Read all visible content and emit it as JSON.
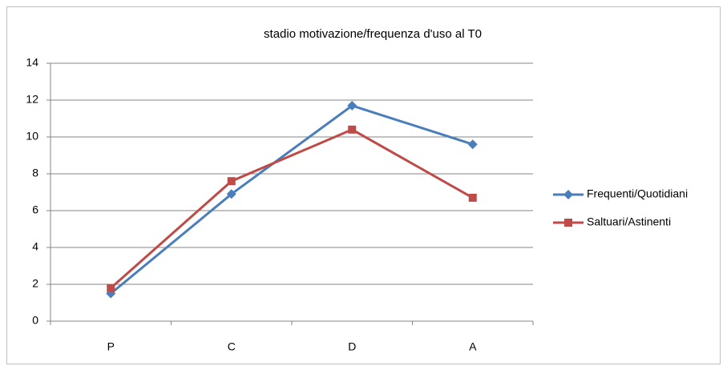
{
  "chart_data": {
    "type": "line",
    "title": "stadio motivazione/frequenza d'uso al T0",
    "categories": [
      "P",
      "C",
      "D",
      "A"
    ],
    "series": [
      {
        "name": "Frequenti/Quotidiani",
        "color": "#4a7ebb",
        "marker": "diamond",
        "values": [
          1.5,
          6.9,
          11.7,
          9.6
        ]
      },
      {
        "name": "Saltuari/Astinenti",
        "color": "#be4b48",
        "marker": "square",
        "values": [
          1.8,
          7.6,
          10.4,
          6.7
        ]
      }
    ],
    "ylim": [
      0,
      14
    ],
    "yticks": [
      0,
      2,
      4,
      6,
      8,
      10,
      12,
      14
    ],
    "grid": true,
    "legend": "right"
  }
}
